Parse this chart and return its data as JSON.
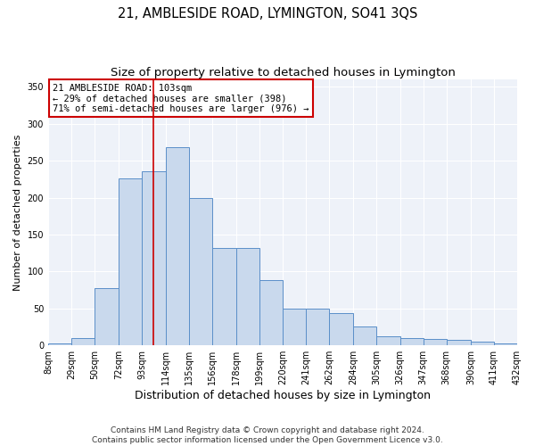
{
  "title": "21, AMBLESIDE ROAD, LYMINGTON, SO41 3QS",
  "subtitle": "Size of property relative to detached houses in Lymington",
  "xlabel": "Distribution of detached houses by size in Lymington",
  "ylabel": "Number of detached properties",
  "bar_color": "#c9d9ed",
  "bar_edge_color": "#5b8fc9",
  "background_color": "#eef2f9",
  "grid_color": "#ffffff",
  "vline_x": 103,
  "vline_color": "#cc0000",
  "bin_edges": [
    8,
    29,
    50,
    72,
    93,
    114,
    135,
    156,
    178,
    199,
    220,
    241,
    262,
    284,
    305,
    326,
    347,
    368,
    390,
    411,
    432
  ],
  "bar_heights": [
    3,
    10,
    77,
    226,
    236,
    268,
    200,
    132,
    132,
    88,
    50,
    50,
    44,
    26,
    12,
    10,
    9,
    8,
    5,
    3
  ],
  "annotation_text": "21 AMBLESIDE ROAD: 103sqm\n← 29% of detached houses are smaller (398)\n71% of semi-detached houses are larger (976) →",
  "annotation_box_color": "#ffffff",
  "annotation_box_edge_color": "#cc0000",
  "ylim": [
    0,
    360
  ],
  "yticks": [
    0,
    50,
    100,
    150,
    200,
    250,
    300,
    350
  ],
  "footer": "Contains HM Land Registry data © Crown copyright and database right 2024.\nContains public sector information licensed under the Open Government Licence v3.0."
}
